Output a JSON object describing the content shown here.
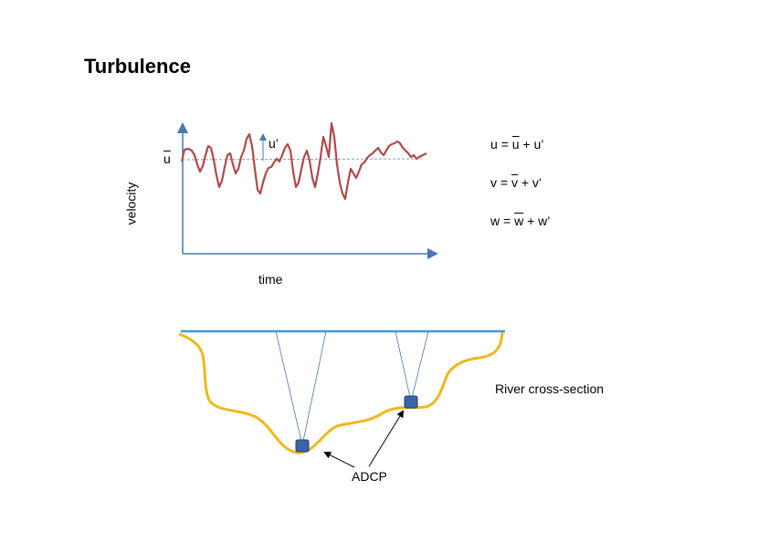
{
  "title": "Turbulence",
  "chart": {
    "ylabel": "velocity",
    "xlabel": "time",
    "mean_label": "u",
    "fluct_label": "u’",
    "colors": {
      "axis": "#4a77b4",
      "signal": "#b04a4a",
      "mean_line": "#8a9cc0"
    }
  },
  "equations": [
    {
      "lhs": "u = ",
      "bar": "u",
      "rhs": " + u’"
    },
    {
      "lhs": "v = ",
      "bar": "v",
      "rhs": " + v’"
    },
    {
      "lhs": "w = ",
      "bar": "w",
      "rhs": " + w’"
    }
  ],
  "cross_section": {
    "label": "River cross-section",
    "instrument_label": "ADCP",
    "colors": {
      "surface": "#3b9ae0",
      "bed": "#f0b81c",
      "beam": "#4a77b4",
      "instrument": "#3a64a8"
    }
  }
}
